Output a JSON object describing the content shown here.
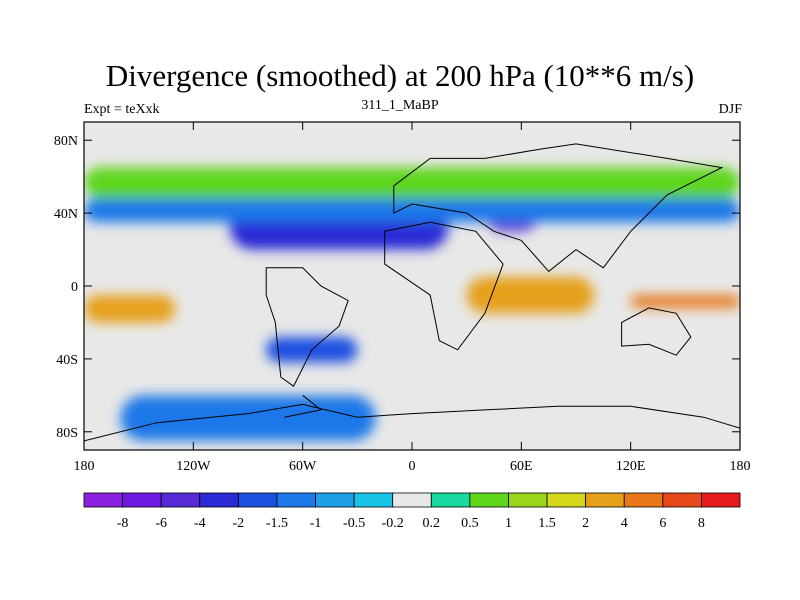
{
  "chart_data": {
    "type": "contour-map",
    "title": "Divergence (smoothed) at 200 hPa (10**6 m/s)",
    "subtitle_left": "Expt = teXxk",
    "subtitle_center": "311_1_MaBP",
    "subtitle_right": "DJF",
    "x_ticks": [
      "180",
      "120W",
      "60W",
      "0",
      "60E",
      "120E",
      "180"
    ],
    "x_tick_values": [
      -180,
      -120,
      -60,
      0,
      60,
      120,
      180
    ],
    "y_ticks": [
      "80N",
      "40N",
      "0",
      "40S",
      "80S"
    ],
    "y_tick_values": [
      80,
      40,
      0,
      -40,
      -80
    ],
    "xlim": [
      -180,
      180
    ],
    "ylim": [
      -90,
      90
    ],
    "colorbar": {
      "labels": [
        "-8",
        "-6",
        "-4",
        "-2",
        "-1.5",
        "-1",
        "-0.5",
        "-0.2",
        "0.2",
        "0.5",
        "1",
        "1.5",
        "2",
        "4",
        "6",
        "8"
      ],
      "colors": [
        "#8a1fe0",
        "#6f1ae0",
        "#5a2ad6",
        "#2a2ad6",
        "#1a50e0",
        "#1e78e8",
        "#1fa0e6",
        "#19c3e6",
        "#e8e8e8",
        "#1ad9a0",
        "#5fd61a",
        "#9ad61a",
        "#d6d61a",
        "#e6a01a",
        "#e6781a",
        "#e64a1a",
        "#e61a1a"
      ]
    },
    "regions": [
      {
        "type": "convergence",
        "value": -2,
        "lon": [
          -100,
          20
        ],
        "lat": [
          20,
          45
        ],
        "color": "#2a2ad6"
      },
      {
        "type": "convergence",
        "value": -4,
        "lon": [
          40,
          70
        ],
        "lat": [
          30,
          50
        ],
        "color": "#5a2ad6"
      },
      {
        "type": "convergence",
        "value": -1,
        "lon": [
          -180,
          180
        ],
        "lat": [
          35,
          48
        ],
        "color": "#1e78e8"
      },
      {
        "type": "divergence",
        "value": 2,
        "lon": [
          30,
          100
        ],
        "lat": [
          -15,
          5
        ],
        "color": "#e6a01a"
      },
      {
        "type": "divergence",
        "value": 4,
        "lon": [
          120,
          180
        ],
        "lat": [
          -12,
          -5
        ],
        "color": "#e6781a"
      },
      {
        "type": "divergence",
        "value": 2,
        "lon": [
          -180,
          -130
        ],
        "lat": [
          -20,
          -5
        ],
        "color": "#e6a01a"
      },
      {
        "type": "divergence",
        "value": 1,
        "lon": [
          -180,
          180
        ],
        "lat": [
          48,
          65
        ],
        "color": "#5fd61a"
      },
      {
        "type": "convergence",
        "value": -1.5,
        "lon": [
          -80,
          -30
        ],
        "lat": [
          -42,
          -28
        ],
        "color": "#1a50e0"
      },
      {
        "type": "convergence",
        "value": -1,
        "lon": [
          -160,
          -20
        ],
        "lat": [
          -85,
          -60
        ],
        "color": "#1e78e8"
      }
    ]
  }
}
